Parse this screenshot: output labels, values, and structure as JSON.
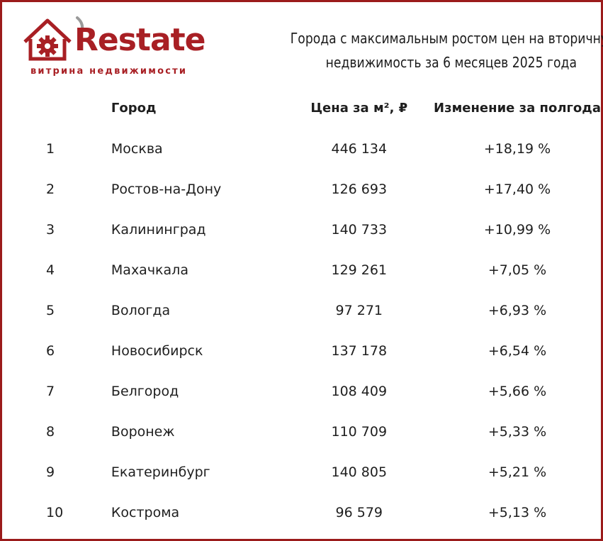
{
  "logo": {
    "wordmark": "Restate",
    "tagline": "витрина недвижимости",
    "brand_color": "#a81f24",
    "icon": "house-gear-icon"
  },
  "title": {
    "line1": "Города с максимальным ростом цен на вторичную",
    "line2": "недвижимость за 6 месяцев 2025 года"
  },
  "table": {
    "headers": {
      "rank": "",
      "city": "Город",
      "price": "Цена за м², ₽",
      "change": "Изменение за полгода"
    },
    "rows": [
      {
        "rank": "1",
        "city": "Москва",
        "price": "446 134",
        "change": "+18,19 %"
      },
      {
        "rank": "2",
        "city": "Ростов-на-Дону",
        "price": "126 693",
        "change": "+17,40 %"
      },
      {
        "rank": "3",
        "city": "Калининград",
        "price": "140 733",
        "change": "+10,99 %"
      },
      {
        "rank": "4",
        "city": "Махачкала",
        "price": "129 261",
        "change": "+7,05 %"
      },
      {
        "rank": "5",
        "city": "Вологда",
        "price": "97 271",
        "change": "+6,93 %"
      },
      {
        "rank": "6",
        "city": "Новосибирск",
        "price": "137 178",
        "change": "+6,54 %"
      },
      {
        "rank": "7",
        "city": "Белгород",
        "price": "108 409",
        "change": "+5,66 %"
      },
      {
        "rank": "8",
        "city": "Воронеж",
        "price": "110 709",
        "change": "+5,33 %"
      },
      {
        "rank": "9",
        "city": "Екатеринбург",
        "price": "140 805",
        "change": "+5,21 %"
      },
      {
        "rank": "10",
        "city": "Кострома",
        "price": "96 579",
        "change": "+5,13 %"
      }
    ]
  }
}
